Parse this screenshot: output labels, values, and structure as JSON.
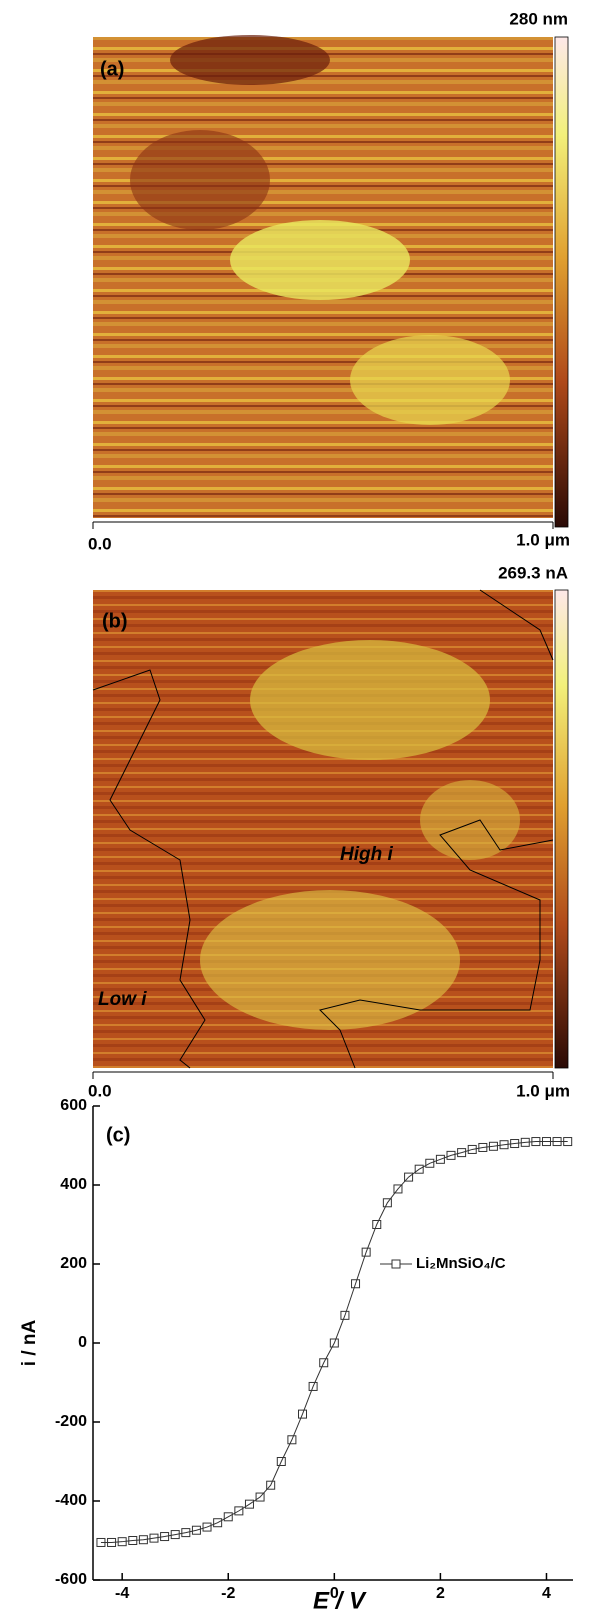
{
  "panel_a": {
    "label": "(a)",
    "scale_max": "280 nm",
    "x_start": "0.0",
    "x_end": "1.0 μm"
  },
  "panel_b": {
    "label": "(b)",
    "scale_max": "269.3 nA",
    "x_start": "0.0",
    "x_end": "1.0 μm",
    "annotations": [
      "High i",
      "Low i"
    ]
  },
  "chart_data": {
    "type": "scatter",
    "label": "(c)",
    "x_label": "E / V",
    "y_label": "i / nA",
    "xlim": [
      -4.55,
      4.5
    ],
    "ylim": [
      -600,
      600
    ],
    "xticks": [
      -4,
      -2,
      0,
      2,
      4
    ],
    "yticks": [
      -600,
      -400,
      -200,
      0,
      200,
      400,
      600
    ],
    "x": [
      -4.4,
      -4.2,
      -4.0,
      -3.8,
      -3.6,
      -3.4,
      -3.2,
      -3.0,
      -2.8,
      -2.6,
      -2.4,
      -2.2,
      -2.0,
      -1.8,
      -1.6,
      -1.4,
      -1.2,
      -1.0,
      -0.8,
      -0.6,
      -0.4,
      -0.2,
      0,
      0.2,
      0.4,
      0.6,
      0.8,
      1.0,
      1.2,
      1.4,
      1.6,
      1.8,
      2.0,
      2.2,
      2.4,
      2.6,
      2.8,
      3.0,
      3.2,
      3.4,
      3.6,
      3.8,
      4.0,
      4.2,
      4.4
    ],
    "series": [
      {
        "name": "Li₂MnSiO₄/C",
        "color": "#333333",
        "values": [
          -505,
          -505,
          -503,
          -500,
          -498,
          -494,
          -490,
          -485,
          -480,
          -474,
          -466,
          -455,
          -440,
          -425,
          -408,
          -390,
          -360,
          -300,
          -245,
          -180,
          -110,
          -50,
          0,
          70,
          150,
          230,
          300,
          355,
          390,
          420,
          440,
          455,
          465,
          475,
          482,
          490,
          495,
          498,
          502,
          505,
          508,
          510,
          510,
          510,
          510
        ]
      }
    ]
  }
}
